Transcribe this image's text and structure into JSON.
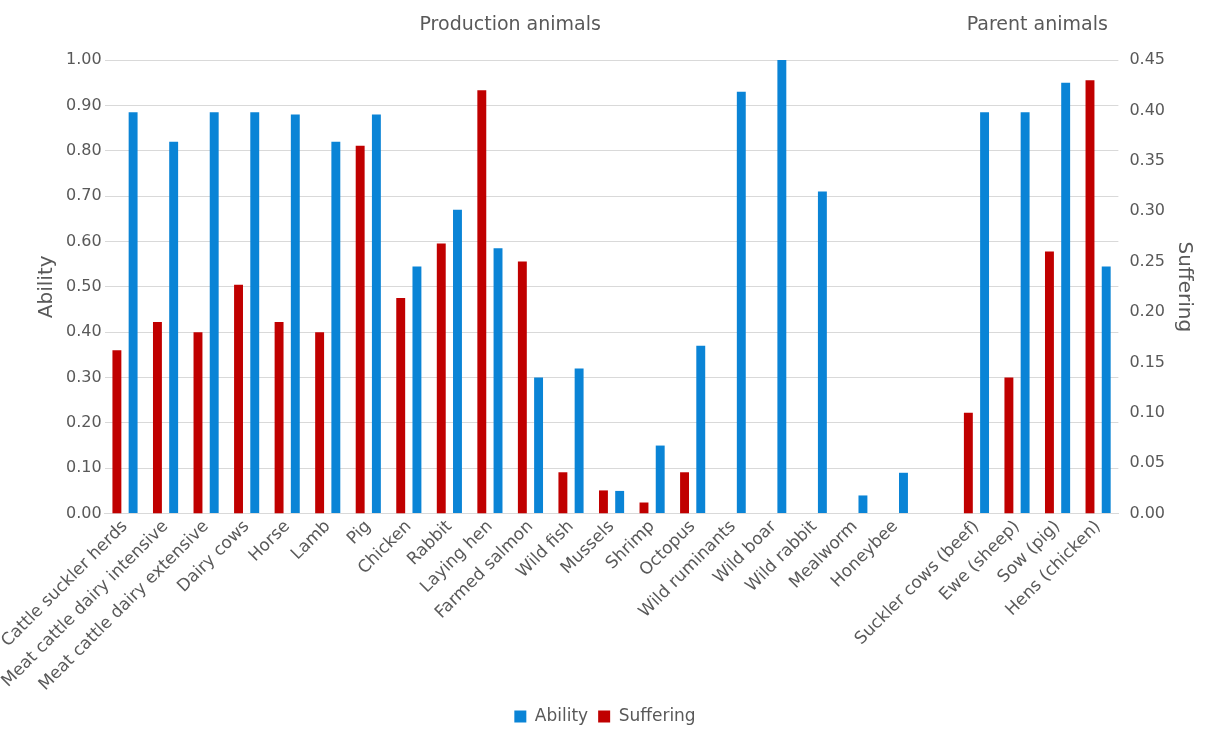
{
  "chart_data": {
    "type": "bar",
    "ylabel": "Ability",
    "y2label": "Suffering",
    "annotations": [
      "Production animals",
      "Parent animals"
    ],
    "categories": [
      "Cattle suckler herds",
      "Meat cattle dairy intensive",
      "Meat cattle dairy extensive",
      "Dairy cows",
      "Horse",
      "Lamb",
      "Pig",
      "Chicken",
      "Rabbit",
      "Laying hen",
      "Farmed salmon",
      "Wild fish",
      "Mussels",
      "Shrimp",
      "Octopus",
      "Wild ruminants",
      "Wild boar",
      "Wild rabbit",
      "Mealworm",
      "Honeybee",
      null,
      "Suckler cows (beef)",
      "Ewe (sheep)",
      "Sow (pig)",
      "Hens (chicken)"
    ],
    "series": [
      {
        "name": "Ability",
        "color": "#0a84d6",
        "values": [
          0.885,
          0.82,
          0.885,
          0.885,
          0.88,
          0.82,
          0.88,
          0.545,
          0.67,
          0.585,
          0.3,
          0.32,
          0.05,
          0.15,
          0.37,
          0.93,
          1.0,
          0.71,
          0.04,
          0.09,
          null,
          0.885,
          0.885,
          0.95,
          0.545
        ]
      },
      {
        "name": "Suffering",
        "color": "#c00000",
        "axis": "y2",
        "values": [
          0.162,
          0.19,
          0.18,
          0.227,
          0.19,
          0.18,
          0.365,
          0.214,
          0.268,
          0.42,
          0.25,
          0.041,
          0.023,
          0.011,
          0.041,
          null,
          null,
          null,
          null,
          null,
          null,
          0.1,
          0.135,
          0.26,
          0.43
        ]
      }
    ],
    "ylim": [
      0,
      1
    ],
    "yticks": [
      {
        "value": 0,
        "label": "0.00"
      },
      {
        "value": 0.1,
        "label": "0.10"
      },
      {
        "value": 0.2,
        "label": "0.20"
      },
      {
        "value": 0.3,
        "label": "0.30"
      },
      {
        "value": 0.4,
        "label": "0.40"
      },
      {
        "value": 0.5,
        "label": "0.50"
      },
      {
        "value": 0.6,
        "label": "0.60"
      },
      {
        "value": 0.7,
        "label": "0.70"
      },
      {
        "value": 0.8,
        "label": "0.80"
      },
      {
        "value": 0.9,
        "label": "0.90"
      },
      {
        "value": 1,
        "label": "1.00"
      }
    ],
    "y2lim": [
      0,
      0.45
    ],
    "y2ticks": [
      {
        "value": 0,
        "label": "0.00"
      },
      {
        "value": 0.05,
        "label": "0.05"
      },
      {
        "value": 0.1,
        "label": "0.10"
      },
      {
        "value": 0.15,
        "label": "0.15"
      },
      {
        "value": 0.2,
        "label": "0.20"
      },
      {
        "value": 0.25,
        "label": "0.25"
      },
      {
        "value": 0.3,
        "label": "0.30"
      },
      {
        "value": 0.35,
        "label": "0.35"
      },
      {
        "value": 0.4,
        "label": "0.40"
      },
      {
        "value": 0.45,
        "label": "0.45"
      }
    ],
    "grid": "y",
    "legend": "bottom"
  }
}
